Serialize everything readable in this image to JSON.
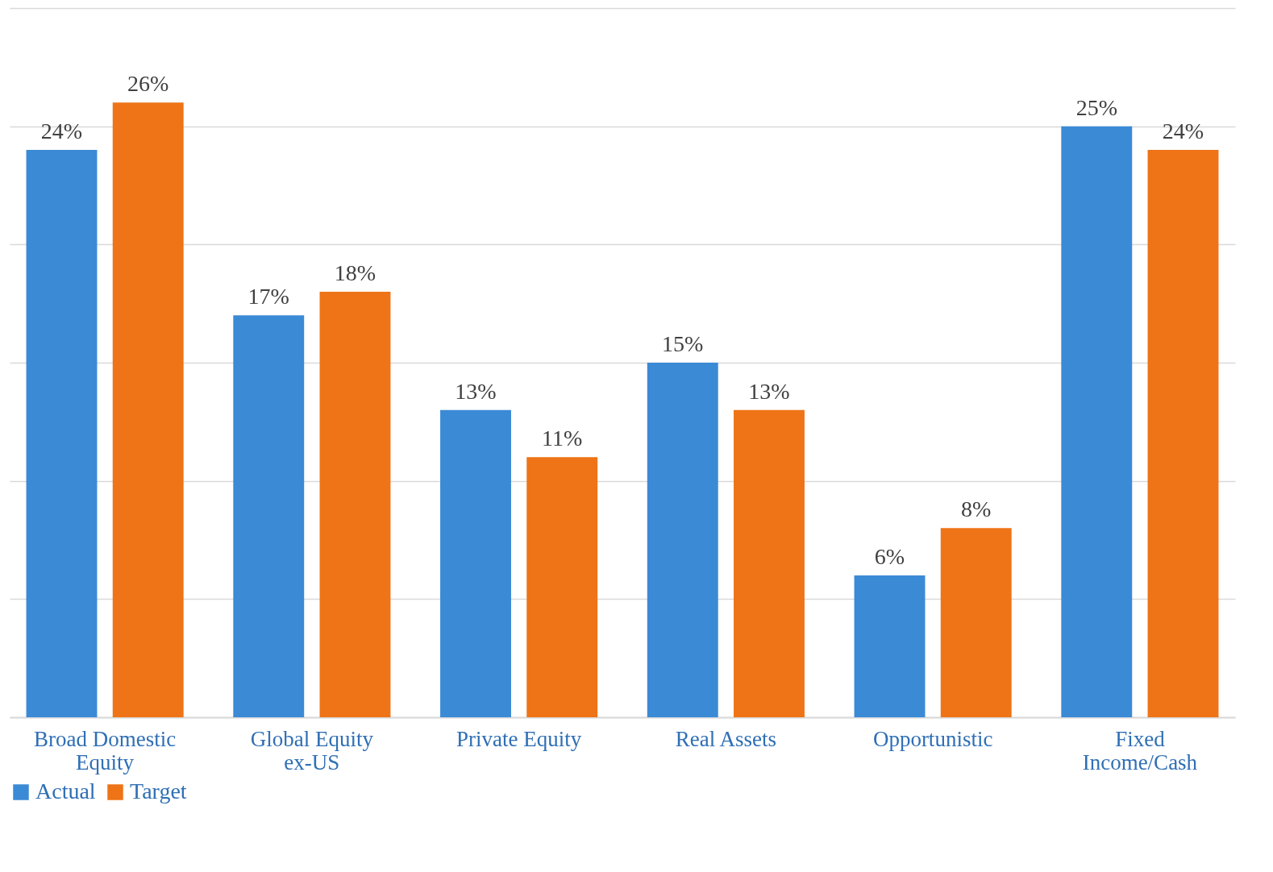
{
  "chart_data": {
    "type": "bar",
    "categories": [
      "Broad Domestic Equity",
      "Global Equity ex-US",
      "Private Equity",
      "Real Assets",
      "Opportunistic",
      "Fixed Income/Cash"
    ],
    "series": [
      {
        "name": "Actual",
        "color": "#3b8ad6",
        "values": [
          24,
          17,
          13,
          15,
          6,
          25
        ],
        "value_labels": [
          "24%",
          "17%",
          "13%",
          "15%",
          "6%",
          "25%"
        ]
      },
      {
        "name": "Target",
        "color": "#ee7417",
        "values": [
          26,
          18,
          11,
          13,
          8,
          24
        ],
        "value_labels": [
          "26%",
          "18%",
          "11%",
          "13%",
          "8%",
          "24%"
        ]
      }
    ],
    "ylim": [
      0,
      30
    ],
    "yticks": [
      {
        "value": 0,
        "label": null
      },
      {
        "value": 5,
        "label": null
      },
      {
        "value": 10,
        "label": null
      },
      {
        "value": 15,
        "label": null
      },
      {
        "value": 20,
        "label": null
      },
      {
        "value": 25,
        "label": null
      },
      {
        "value": 30,
        "label": null
      }
    ],
    "grid": "y",
    "legend": "bottom",
    "tick_labels": "x"
  }
}
